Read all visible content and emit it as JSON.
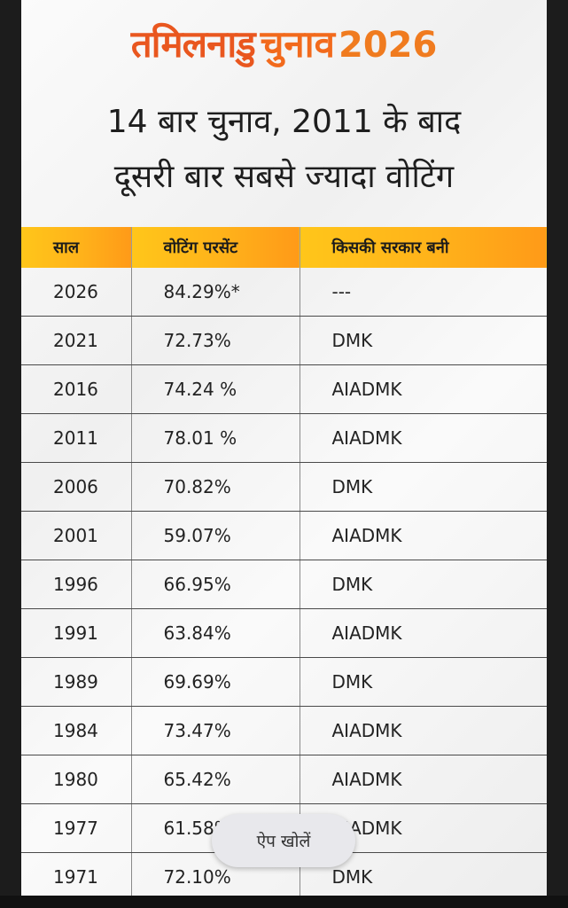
{
  "brand": {
    "part1": "तमिलनाडु",
    "part2": "चुनाव",
    "part3": "2026"
  },
  "headline": {
    "line1": "14 बार चुनाव, 2011 के बाद",
    "line2": "दूसरी बार सबसे ज्यादा वोटिंग"
  },
  "table": {
    "headers": [
      "साल",
      "वोटिंग परसेंट",
      "किसकी सरकार बनी"
    ],
    "rows": [
      [
        "2026",
        "84.29%*",
        "---"
      ],
      [
        "2021",
        "72.73%",
        "DMK"
      ],
      [
        "2016",
        "74.24 %",
        "AIADMK"
      ],
      [
        "2011",
        "78.01 %",
        "AIADMK"
      ],
      [
        "2006",
        "70.82%",
        "DMK"
      ],
      [
        "2001",
        "59.07%",
        "AIADMK"
      ],
      [
        "1996",
        "66.95%",
        "DMK"
      ],
      [
        "1991",
        "63.84%",
        "AIADMK"
      ],
      [
        "1989",
        "69.69%",
        "DMK"
      ],
      [
        "1984",
        "73.47%",
        "AIADMK"
      ],
      [
        "1980",
        "65.42%",
        "AIADMK"
      ],
      [
        "1977",
        "61.58%",
        "AIADMK"
      ],
      [
        "1971",
        "72.10%",
        "DMK"
      ]
    ]
  },
  "open_app_button": {
    "label": "ऐप खोलें"
  }
}
